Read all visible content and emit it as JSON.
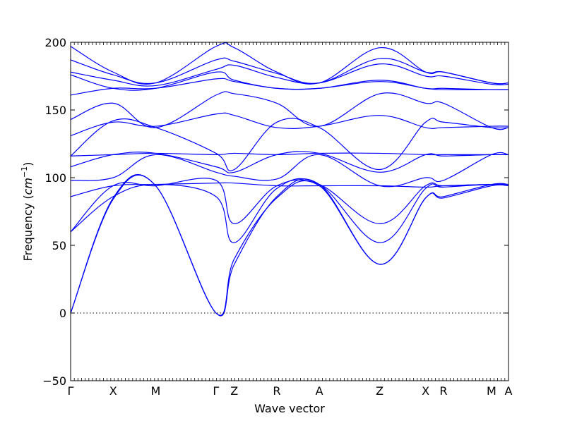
{
  "chart_data": {
    "type": "line",
    "title": "",
    "xlabel": "Wave vector",
    "ylabel_text": "Frequency (",
    "ylabel_unit_base": "cm",
    "ylabel_unit_exp": "−1",
    "ylabel_close": ")",
    "ylim": [
      -50,
      200
    ],
    "y_ticks": [
      -50,
      0,
      50,
      100,
      150,
      200
    ],
    "y_tick_labels": [
      "−50",
      "0",
      "50",
      "100",
      "150",
      "200"
    ],
    "x_range": [
      0,
      10.3
    ],
    "grid": false,
    "legend": "none",
    "zero_line": true,
    "colors": {
      "bands": "#0000ff",
      "axis": "#000000",
      "zero_line": "#000000"
    },
    "high_symmetry_points": [
      {
        "label": "Γ",
        "x": 0.0
      },
      {
        "label": "X",
        "x": 1.0
      },
      {
        "label": "M",
        "x": 2.0
      },
      {
        "label": "Γ",
        "x": 3.42
      },
      {
        "label": "Z",
        "x": 3.85
      },
      {
        "label": "R",
        "x": 4.85
      },
      {
        "label": "A",
        "x": 5.85
      },
      {
        "label": "Z",
        "x": 7.27
      },
      {
        "label": "X",
        "x": 8.35
      },
      {
        "label": "R",
        "x": 8.77
      },
      {
        "label": "M",
        "x": 9.9
      },
      {
        "label": "A",
        "x": 10.3
      }
    ],
    "series": [
      {
        "x": [
          0,
          1,
          2,
          3.42,
          3.85,
          4.85,
          5.85,
          7.27,
          8.35,
          8.77,
          9.9,
          10.3
        ],
        "values": [
          0,
          84,
          94,
          0,
          36,
          86,
          95,
          36,
          85,
          86,
          95,
          95
        ]
      },
      {
        "x": [
          0,
          1,
          2,
          3.42,
          3.85,
          4.85,
          5.85,
          7.27,
          8.35,
          8.77,
          9.9,
          10.3
        ],
        "values": [
          0,
          85,
          94,
          0,
          40,
          85,
          94,
          36,
          85,
          85,
          94,
          94
        ]
      },
      {
        "x": [
          0,
          1,
          2,
          3.42,
          3.85,
          4.85,
          5.85,
          7.27,
          8.35,
          8.77,
          9.9,
          10.3
        ],
        "values": [
          60,
          86,
          95,
          86,
          52,
          92,
          95,
          52,
          92,
          93,
          95,
          94
        ]
      },
      {
        "x": [
          0,
          1,
          2,
          3.42,
          3.85,
          4.85,
          5.85,
          7.27,
          8.35,
          8.77,
          9.9,
          10.3
        ],
        "values": [
          60,
          94,
          94,
          98,
          66,
          94,
          95,
          66,
          94,
          94,
          95,
          94
        ]
      },
      {
        "x": [
          0,
          1,
          2,
          3.42,
          3.85,
          4.85,
          5.85,
          7.27,
          8.35,
          8.77,
          9.9,
          10.3
        ],
        "values": [
          86,
          94,
          95,
          96,
          96,
          94,
          94,
          94,
          93,
          94,
          95,
          95
        ]
      },
      {
        "x": [
          0,
          1,
          2,
          3.42,
          3.85,
          4.85,
          5.85,
          7.27,
          8.35,
          8.77,
          9.9,
          10.3
        ],
        "values": [
          98,
          100,
          117,
          104,
          101,
          99,
          117,
          94,
          100,
          98,
          117,
          117
        ]
      },
      {
        "x": [
          0,
          1,
          2,
          3.42,
          3.85,
          4.85,
          5.85,
          7.27,
          8.35,
          8.77,
          9.9,
          10.3
        ],
        "values": [
          108,
          117,
          118,
          108,
          104,
          117,
          118,
          104,
          117,
          116,
          117,
          117
        ]
      },
      {
        "x": [
          0,
          1,
          2,
          3.42,
          3.85,
          4.85,
          5.85,
          7.27,
          8.35,
          8.77,
          9.9,
          10.3
        ],
        "values": [
          116,
          117,
          118,
          117,
          118,
          117,
          118,
          118,
          117,
          117,
          117,
          117
        ]
      },
      {
        "x": [
          0,
          1,
          2,
          3.42,
          3.85,
          4.85,
          5.85,
          7.27,
          8.35,
          8.77,
          9.9,
          10.3
        ],
        "values": [
          116,
          142,
          137,
          118,
          106,
          141,
          137,
          106,
          141,
          141,
          137,
          137
        ]
      },
      {
        "x": [
          0,
          1,
          2,
          3.42,
          3.85,
          4.85,
          5.85,
          7.27,
          8.35,
          8.77,
          9.9,
          10.3
        ],
        "values": [
          131,
          141,
          138,
          147,
          146,
          137,
          138,
          146,
          137,
          137,
          138,
          138
        ]
      },
      {
        "x": [
          0,
          1,
          2,
          3.42,
          3.85,
          4.85,
          5.85,
          7.27,
          8.35,
          8.77,
          9.9,
          10.3
        ],
        "values": [
          143,
          155,
          137,
          161,
          162,
          155,
          138,
          162,
          155,
          155,
          137,
          137
        ]
      },
      {
        "x": [
          0,
          1,
          2,
          3.42,
          3.85,
          4.85,
          5.85,
          7.27,
          8.35,
          8.77,
          9.9,
          10.3
        ],
        "values": [
          161,
          166,
          166,
          173,
          171,
          166,
          166,
          171,
          166,
          165,
          165,
          165
        ]
      },
      {
        "x": [
          0,
          1,
          2,
          3.42,
          3.85,
          4.85,
          5.85,
          7.27,
          8.35,
          8.77,
          9.9,
          10.3
        ],
        "values": [
          176,
          166,
          166,
          178,
          172,
          166,
          166,
          172,
          166,
          166,
          165,
          165
        ]
      },
      {
        "x": [
          0,
          1,
          2,
          3.42,
          3.85,
          4.85,
          5.85,
          7.27,
          8.35,
          8.77,
          9.9,
          10.3
        ],
        "values": [
          178,
          172,
          168,
          180,
          183,
          174,
          170,
          184,
          175,
          175,
          169,
          169
        ]
      },
      {
        "x": [
          0,
          1,
          2,
          3.42,
          3.85,
          4.85,
          5.85,
          7.27,
          8.35,
          8.77,
          9.9,
          10.3
        ],
        "values": [
          187,
          176,
          170,
          187,
          186,
          177,
          170,
          188,
          178,
          178,
          170,
          170
        ]
      },
      {
        "x": [
          0,
          1,
          2,
          3.42,
          3.85,
          4.85,
          5.85,
          7.27,
          8.35,
          8.77,
          9.9,
          10.3
        ],
        "values": [
          197,
          178,
          170,
          197,
          196,
          178,
          170,
          196,
          178,
          178,
          170,
          170
        ]
      }
    ]
  }
}
